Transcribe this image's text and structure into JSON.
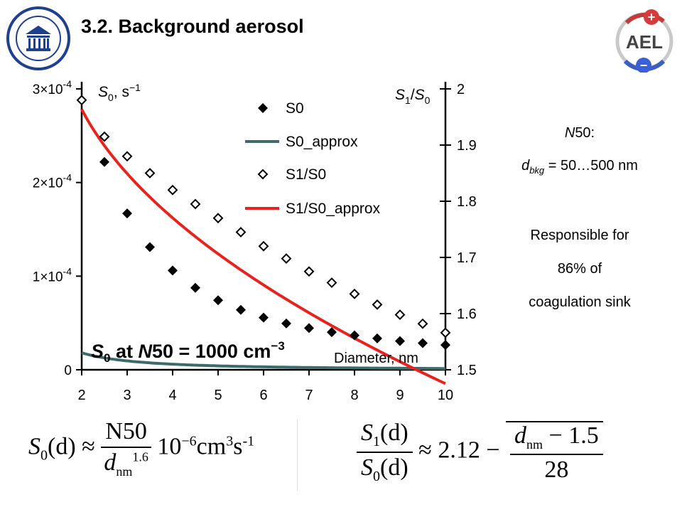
{
  "slide": {
    "title": "3.2. Background aerosol"
  },
  "logos": {
    "left": "university-seal",
    "right_text": "AEL",
    "right_plus": "+",
    "right_minus": "−"
  },
  "chart_data": {
    "type": "scatter",
    "annotation": {
      "s0": "S",
      "s0_sub": "0",
      "at": " at ",
      "n50": "N",
      "rest": "50 = 1000 cm",
      "exp": "−3"
    },
    "x_axis": {
      "label": "Diameter, nm",
      "range": [
        2,
        10
      ],
      "ticks": [
        2,
        3,
        4,
        5,
        6,
        7,
        8,
        9,
        10
      ]
    },
    "y_left": {
      "label_main": "S",
      "label_sub": "0",
      "label_rest": ", s",
      "label_exp": "−1",
      "range": [
        0,
        0.0003
      ],
      "ticks": [
        {
          "v": 0,
          "base": "0",
          "exp": ""
        },
        {
          "v": 0.0001,
          "base": "1×10",
          "exp": "-4"
        },
        {
          "v": 0.0002,
          "base": "2×10",
          "exp": "-4"
        },
        {
          "v": 0.0003,
          "base": "3×10",
          "exp": "-4"
        }
      ]
    },
    "y_right": {
      "label_a": "S",
      "label_a_sub": "1",
      "label_slash": "/",
      "label_b": "S",
      "label_b_sub": "0",
      "range": [
        1.5,
        2.0
      ],
      "ticks": [
        "1.5",
        "1.6",
        "1.7",
        "1.8",
        "1.9",
        "2"
      ]
    },
    "series": [
      {
        "name": "S0",
        "axis": "left",
        "marker": "filled-diamond",
        "x": [
          2.5,
          3,
          3.5,
          4,
          4.5,
          5,
          5.5,
          6,
          6.5,
          7,
          7.5,
          8,
          8.5,
          9,
          9.5,
          10
        ],
        "y": [
          0.000222,
          0.000167,
          0.000131,
          0.000106,
          8.75e-05,
          7.42e-05,
          6.4e-05,
          5.57e-05,
          4.95e-05,
          4.45e-05,
          4.02e-05,
          3.67e-05,
          3.35e-05,
          3.07e-05,
          2.85e-05,
          2.65e-05
        ]
      },
      {
        "name": "S0_approx",
        "axis": "left",
        "line": true,
        "color": "#3d6b6b"
      },
      {
        "name": "S1/S0",
        "axis": "right",
        "marker": "open-diamond",
        "x": [
          2,
          2.5,
          3,
          3.5,
          4,
          4.5,
          5,
          5.5,
          6,
          6.5,
          7,
          7.5,
          8,
          8.5,
          9,
          9.5,
          10
        ],
        "y": [
          1.98,
          1.915,
          1.88,
          1.85,
          1.82,
          1.795,
          1.77,
          1.745,
          1.72,
          1.698,
          1.675,
          1.655,
          1.635,
          1.616,
          1.598,
          1.582,
          1.566
        ]
      },
      {
        "name": "S1/S0_approx",
        "axis": "right",
        "line": true,
        "color": "#e8221f"
      }
    ]
  },
  "side": {
    "n50_label": "N",
    "n50_rest": "50:",
    "d_label": "d",
    "d_sub": "bkg",
    "d_rest": " = 50…500 nm",
    "line1": "Responsible for",
    "line2": "86% of",
    "line3": "coagulation sink"
  },
  "formula1": {
    "lhs": "S",
    "lhs_sub": "0",
    "lhs_arg": "(d) ≈ ",
    "num": "N50",
    "den": "d",
    "den_sub": "nm",
    "den_sup": "1.6",
    "rest": "10",
    "rest_sup": "−6",
    "units": "cm",
    "units_sup": "3",
    "units2": "s",
    "units2_sup": "-1"
  },
  "formula2": {
    "num": "S",
    "num_sub": "1",
    "num_arg": "(d)",
    "den": "S",
    "den_sub": "0",
    "den_arg": "(d)",
    "approx": " ≈ 2.12 − ",
    "rnum": "d",
    "rnum_sub": "nm",
    "rnum_rest": " − 1.5",
    "rden": "28"
  }
}
